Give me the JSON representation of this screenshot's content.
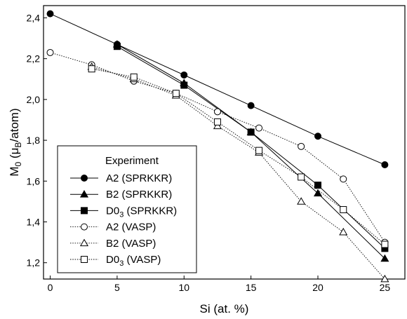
{
  "chart_data": {
    "type": "line",
    "xlabel": "Si (at. %)",
    "ylabel": {
      "main": "M",
      "sub0": "0",
      "open": " (μ",
      "sub1": "B",
      "close": "/atom)"
    },
    "xlim": [
      -0.5,
      26.5
    ],
    "ylim": [
      1.12,
      2.46
    ],
    "xticks": [
      0,
      5,
      10,
      15,
      20,
      25
    ],
    "yticks": [
      1.2,
      1.4,
      1.6,
      1.8,
      2.0,
      2.2,
      2.4
    ],
    "ytick_labels": [
      "1,2",
      "1,4",
      "1,6",
      "1,8",
      "2,0",
      "2,2",
      "2,4"
    ],
    "grid": false,
    "legend_position": "bottom-left",
    "legend_title": "Experiment",
    "series": [
      {
        "name": "A2 (SPRKKR)",
        "marker": "circle",
        "filled": true,
        "dashed": false,
        "points": [
          [
            0,
            2.42
          ],
          [
            5,
            2.27
          ],
          [
            10,
            2.12
          ],
          [
            15,
            1.97
          ],
          [
            20,
            1.82
          ],
          [
            25,
            1.68
          ]
        ]
      },
      {
        "name": "B2 (SPRKKR)",
        "marker": "triangle",
        "filled": true,
        "dashed": false,
        "points": [
          [
            5,
            2.27
          ],
          [
            10,
            2.08
          ],
          [
            15,
            1.84
          ],
          [
            20,
            1.54
          ],
          [
            25,
            1.22
          ]
        ]
      },
      {
        "name": "D0",
        "name_sub": "3",
        "name_tail": " (SPRKKR)",
        "marker": "square",
        "filled": true,
        "dashed": false,
        "points": [
          [
            5,
            2.26
          ],
          [
            10,
            2.07
          ],
          [
            15,
            1.84
          ],
          [
            20,
            1.58
          ],
          [
            25,
            1.27
          ]
        ]
      },
      {
        "name": "A2 (VASP)",
        "marker": "circle",
        "filled": false,
        "dashed": true,
        "points": [
          [
            0,
            2.23
          ],
          [
            3.1,
            2.17
          ],
          [
            6.25,
            2.09
          ],
          [
            9.4,
            2.03
          ],
          [
            12.5,
            1.94
          ],
          [
            15.6,
            1.86
          ],
          [
            18.75,
            1.77
          ],
          [
            21.9,
            1.61
          ],
          [
            25,
            1.3
          ]
        ]
      },
      {
        "name": "B2 (VASP)",
        "marker": "triangle",
        "filled": false,
        "dashed": true,
        "points": [
          [
            3.1,
            2.16
          ],
          [
            6.25,
            2.1
          ],
          [
            9.4,
            2.02
          ],
          [
            12.5,
            1.87
          ],
          [
            15.6,
            1.74
          ],
          [
            18.75,
            1.5
          ],
          [
            21.9,
            1.35
          ],
          [
            25,
            1.12
          ]
        ]
      },
      {
        "name": "D0",
        "name_sub": "3",
        "name_tail": " (VASP)",
        "marker": "square",
        "filled": false,
        "dashed": true,
        "points": [
          [
            3.1,
            2.15
          ],
          [
            6.25,
            2.11
          ],
          [
            9.4,
            2.03
          ],
          [
            12.5,
            1.89
          ],
          [
            15.6,
            1.75
          ],
          [
            18.75,
            1.62
          ],
          [
            21.9,
            1.46
          ],
          [
            25,
            1.29
          ]
        ]
      }
    ]
  }
}
